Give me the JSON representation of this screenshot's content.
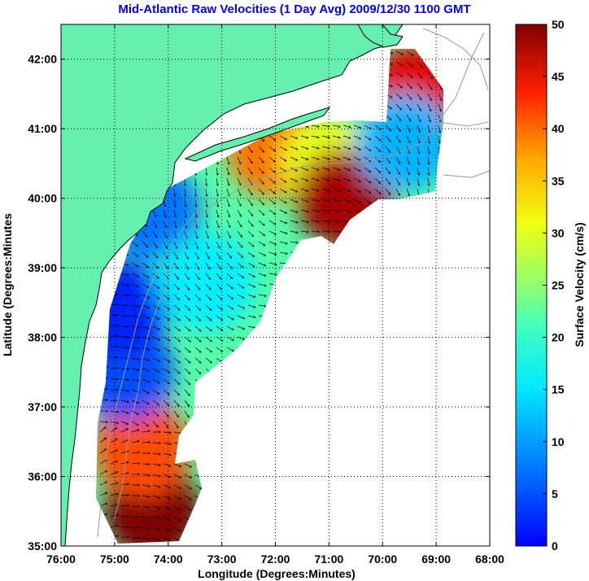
{
  "chart_data": {
    "type": "heatmap",
    "title": "Mid-Atlantic Raw Velocities (1 Day Avg) 2009/12/30 1100 GMT",
    "xlabel": "Longitude (Degrees:Minutes)",
    "ylabel": "Latitude (Degrees:Minutes",
    "xlim": [
      -76,
      -68
    ],
    "ylim": [
      35,
      42.5
    ],
    "x_ticks": [
      {
        "value": -76,
        "label": "76:00"
      },
      {
        "value": -75,
        "label": "75:00"
      },
      {
        "value": -74,
        "label": "74:00"
      },
      {
        "value": -73,
        "label": "73:00"
      },
      {
        "value": -72,
        "label": "72:00"
      },
      {
        "value": -71,
        "label": "71:00"
      },
      {
        "value": -70,
        "label": "70:00"
      },
      {
        "value": -69,
        "label": "69:00"
      },
      {
        "value": -68,
        "label": "68:00"
      }
    ],
    "y_ticks": [
      {
        "value": 35,
        "label": "35:00"
      },
      {
        "value": 36,
        "label": "36:00"
      },
      {
        "value": 37,
        "label": "37:00"
      },
      {
        "value": 38,
        "label": "38:00"
      },
      {
        "value": 39,
        "label": "39:00"
      },
      {
        "value": 40,
        "label": "40:00"
      },
      {
        "value": 41,
        "label": "41:00"
      },
      {
        "value": 42,
        "label": "42:00"
      }
    ],
    "grid": true,
    "colorbar": {
      "label": "Surface Velocity (cm/s)",
      "range": [
        0,
        50
      ],
      "ticks": [
        {
          "value": 0,
          "label": "0"
        },
        {
          "value": 5,
          "label": "5"
        },
        {
          "value": 10,
          "label": "10"
        },
        {
          "value": 15,
          "label": "15"
        },
        {
          "value": 20,
          "label": "20"
        },
        {
          "value": 25,
          "label": "25"
        },
        {
          "value": 30,
          "label": "30"
        },
        {
          "value": 35,
          "label": "35"
        },
        {
          "value": 40,
          "label": "40"
        },
        {
          "value": 45,
          "label": "45"
        },
        {
          "value": 50,
          "label": "50"
        }
      ],
      "colormap": "jet"
    },
    "land_color": "#66f0b0",
    "region_speeds": [
      {
        "lon": -74.3,
        "lat": 35.5,
        "speed": 50
      },
      {
        "lon": -74.5,
        "lat": 36.4,
        "speed": 40
      },
      {
        "lon": -74.8,
        "lat": 37.5,
        "speed": 10
      },
      {
        "lon": -74.9,
        "lat": 38.4,
        "speed": 8
      },
      {
        "lon": -74.3,
        "lat": 39.8,
        "speed": 12
      },
      {
        "lon": -73.3,
        "lat": 38.8,
        "speed": 18
      },
      {
        "lon": -72.0,
        "lat": 40.7,
        "speed": 38
      },
      {
        "lon": -71.0,
        "lat": 40.5,
        "speed": 30
      },
      {
        "lon": -70.7,
        "lat": 40.0,
        "speed": 48
      },
      {
        "lon": -69.4,
        "lat": 41.5,
        "speed": 45
      },
      {
        "lon": -69.6,
        "lat": 40.8,
        "speed": 15
      }
    ]
  }
}
